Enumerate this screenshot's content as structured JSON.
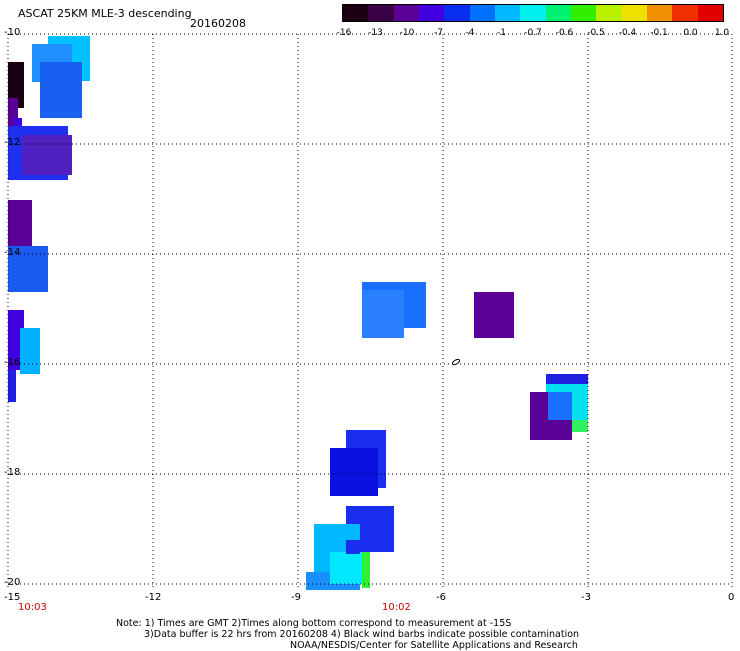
{
  "header": {
    "title": "ASCAT 25KM MLE-3 descending",
    "date": "20160208"
  },
  "colorbar": {
    "labels": [
      "-16",
      "-13",
      "-10",
      "-7",
      "-4",
      "-1",
      "-0.7",
      "-0.6",
      "-0.5",
      "-0.4",
      "-0.1",
      "0.0",
      "1.0"
    ],
    "colors": [
      "#1a0010",
      "#3a0046",
      "#5a0096",
      "#4000e0",
      "#0a2ef0",
      "#0070ff",
      "#00b8ff",
      "#00f0f0",
      "#00f070",
      "#30f000",
      "#b8f000",
      "#f0e000",
      "#f09000",
      "#f03000",
      "#e00000"
    ]
  },
  "axes": {
    "x_ticks": [
      "-15",
      "-12",
      "-9",
      "-6",
      "-3",
      "0"
    ],
    "y_ticks": [
      "-10",
      "-12",
      "-14",
      "-16",
      "-18",
      "-20"
    ]
  },
  "times": [
    "10:03",
    "10:02"
  ],
  "notes": [
    "Note: 1) Times are GMT 2)Times along bottom correspond to measurement at -15S",
    "3)Data buffer is 22 hrs from 20160208 4) Black wind barbs indicate possible contamination",
    "NOAA/NESDIS/Center for Satellite Applications and Research"
  ]
}
